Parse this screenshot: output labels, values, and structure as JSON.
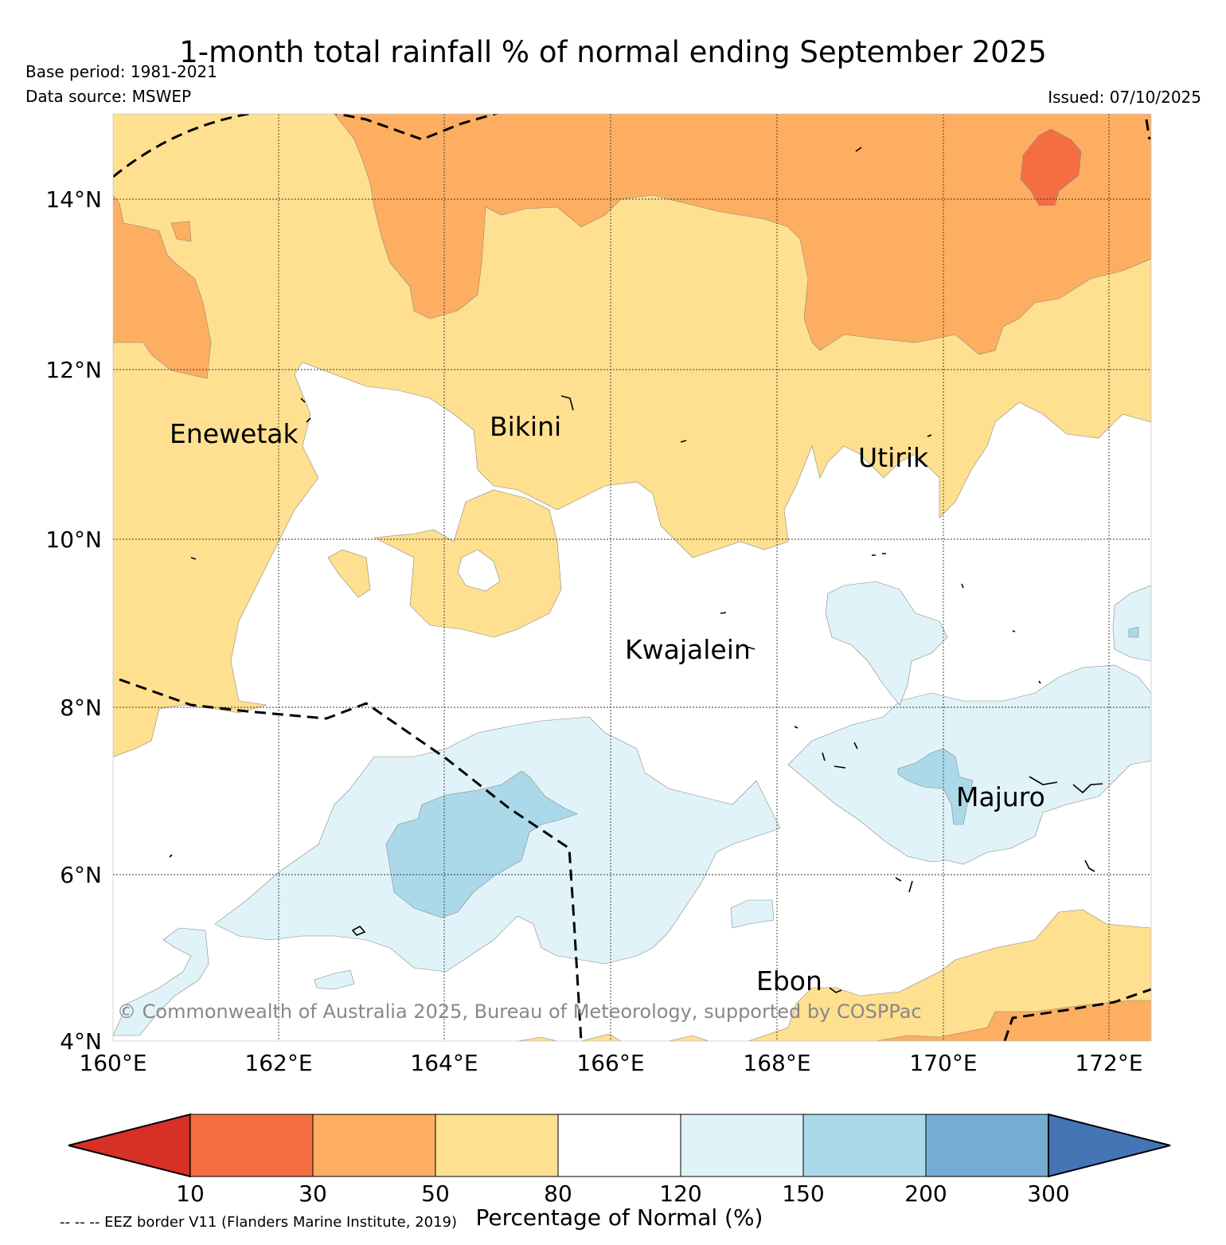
{
  "header": {
    "title": "1-month total rainfall % of normal ending September 2025",
    "base_period": "Base period: 1981-2021",
    "data_source": "Data source: MSWEP",
    "issued": "Issued: 07/10/2025"
  },
  "map": {
    "lat_ticks": [
      "14°N",
      "12°N",
      "10°N",
      "8°N",
      "6°N",
      "4°N"
    ],
    "lon_ticks": [
      "160°E",
      "162°E",
      "164°E",
      "166°E",
      "168°E",
      "170°E",
      "172°E"
    ],
    "place_labels": [
      "Enewetak",
      "Bikini",
      "Utirik",
      "Kwajalein",
      "Majuro",
      "Ebon"
    ],
    "copyright": "© Commonwealth of Australia 2025, Bureau of Meteorology, supported by COSPPac"
  },
  "legend": {
    "levels": [
      "10",
      "30",
      "50",
      "80",
      "120",
      "150",
      "200",
      "300"
    ],
    "colors": [
      "#d73027",
      "#f46d43",
      "#fdae61",
      "#fee090",
      "#ffffff",
      "#e0f3f8",
      "#abd9e9",
      "#74add1",
      "#4575b4"
    ],
    "title": "Percentage of Normal (%)",
    "eez_note": "-- -- -- EEZ border V11 (Flanders Marine Institute, 2019)"
  }
}
